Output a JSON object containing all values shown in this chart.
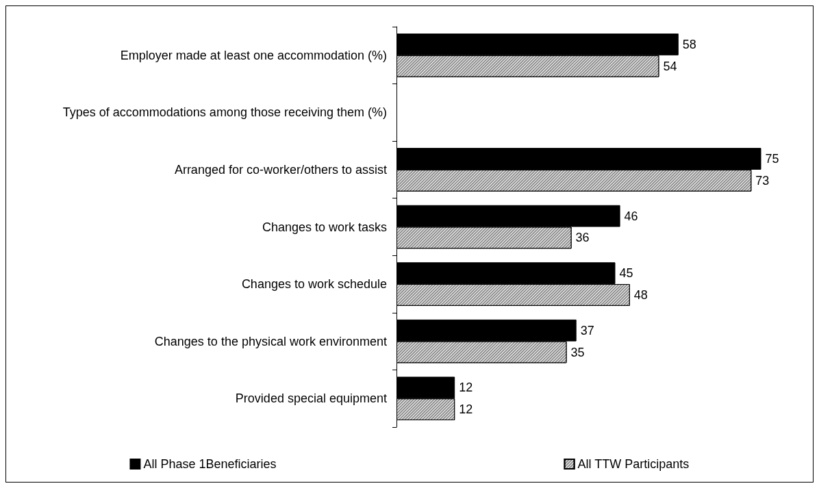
{
  "chart_data": {
    "type": "bar",
    "orientation": "horizontal",
    "categories": [
      "Employer made at least one accommodation (%)",
      "Types of accommodations among those receiving them (%)",
      "Arranged for co-worker/others to assist",
      "Changes to work tasks",
      "Changes to work schedule",
      "Changes to the physical work environment",
      "Provided special equipment"
    ],
    "series": [
      {
        "name": "All Phase 1Beneficiaries",
        "color": "#000000",
        "values": [
          58,
          null,
          75,
          46,
          45,
          37,
          12
        ]
      },
      {
        "name": "All TTW Participants",
        "color": "#8c8c8c",
        "values": [
          54,
          null,
          73,
          36,
          48,
          35,
          12
        ]
      }
    ],
    "data_labels": true,
    "legend": "bottom",
    "grid": false,
    "tick_labels": "y"
  }
}
